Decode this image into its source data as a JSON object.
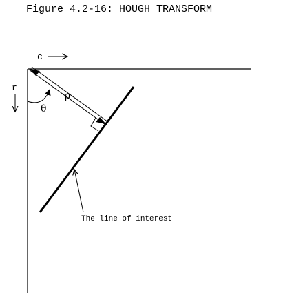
{
  "figure": {
    "title": "Figure 4.2-16: HOUGH TRANSFORM",
    "labels": {
      "column_axis": "c",
      "row_axis": "r",
      "rho": "ρ",
      "theta": "θ",
      "annotation": "The line of interest"
    },
    "colors": {
      "ink": "#000000",
      "background": "#ffffff"
    }
  }
}
